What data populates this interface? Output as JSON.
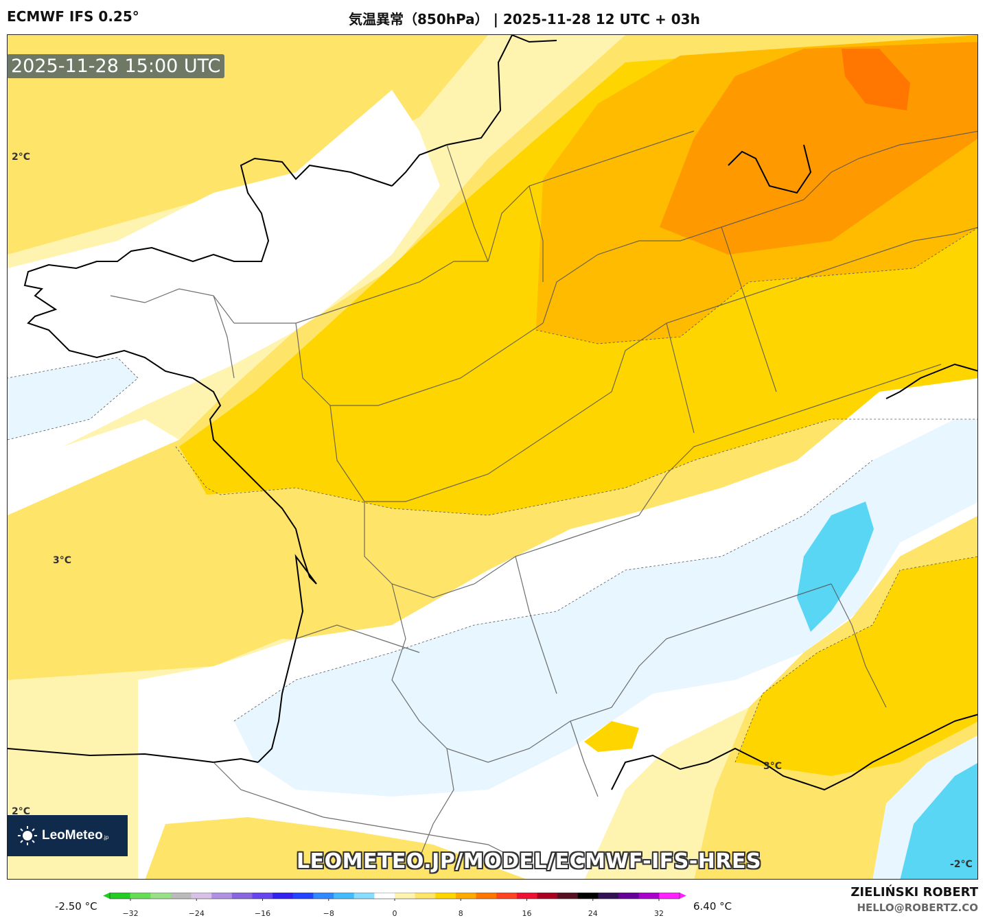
{
  "header": {
    "model": "ECMWF IFS 0.25°",
    "title": "気温異常（850hPa） | 2025-11-28 12 UTC + 03h"
  },
  "map": {
    "valid_time": "2025-11-28 15:00 UTC",
    "watermark_url": "LEOMETEO.JP/MODEL/ECMWF-IFS-HRES",
    "contour_labels": [
      "2°C",
      "3°C",
      "2°C",
      "3°C",
      "-2°C"
    ],
    "colors": {
      "white": "#ffffff",
      "pale_blue": "#e8f6ff",
      "light_yellow": "#fff3b0",
      "yellow": "#ffe46a",
      "gold": "#ffd500",
      "light_orange": "#ffbb00",
      "orange": "#ff9900",
      "dark_orange": "#ff7700",
      "cyan": "#5ad6f5"
    }
  },
  "logo": {
    "name": "LeoMeteo",
    "suffix": ".jp",
    "icon": "sun-icon"
  },
  "colorbar": {
    "min_label": "-2.50 °C",
    "max_label": "6.40 °C",
    "ticks": [
      "−32",
      "−24",
      "−16",
      "−8",
      "0",
      "8",
      "16",
      "24",
      "32"
    ],
    "colors": [
      "#22cc22",
      "#66dd55",
      "#99e088",
      "#bbbbbb",
      "#d8c0e8",
      "#b090e0",
      "#8866dd",
      "#6644ee",
      "#3322ee",
      "#2244ff",
      "#3388ff",
      "#44bbff",
      "#88ddff",
      "#ffffff",
      "#fff3b0",
      "#ffe46a",
      "#ffd500",
      "#ffaa00",
      "#ff7700",
      "#ff4422",
      "#ee1133",
      "#aa0022",
      "#551122",
      "#000000",
      "#331155",
      "#660099",
      "#aa00cc",
      "#ff22ff"
    ]
  },
  "footer": {
    "author": "ZIELIŃSKI ROBERT",
    "email": "HELLO@ROBERTZ.CO"
  }
}
